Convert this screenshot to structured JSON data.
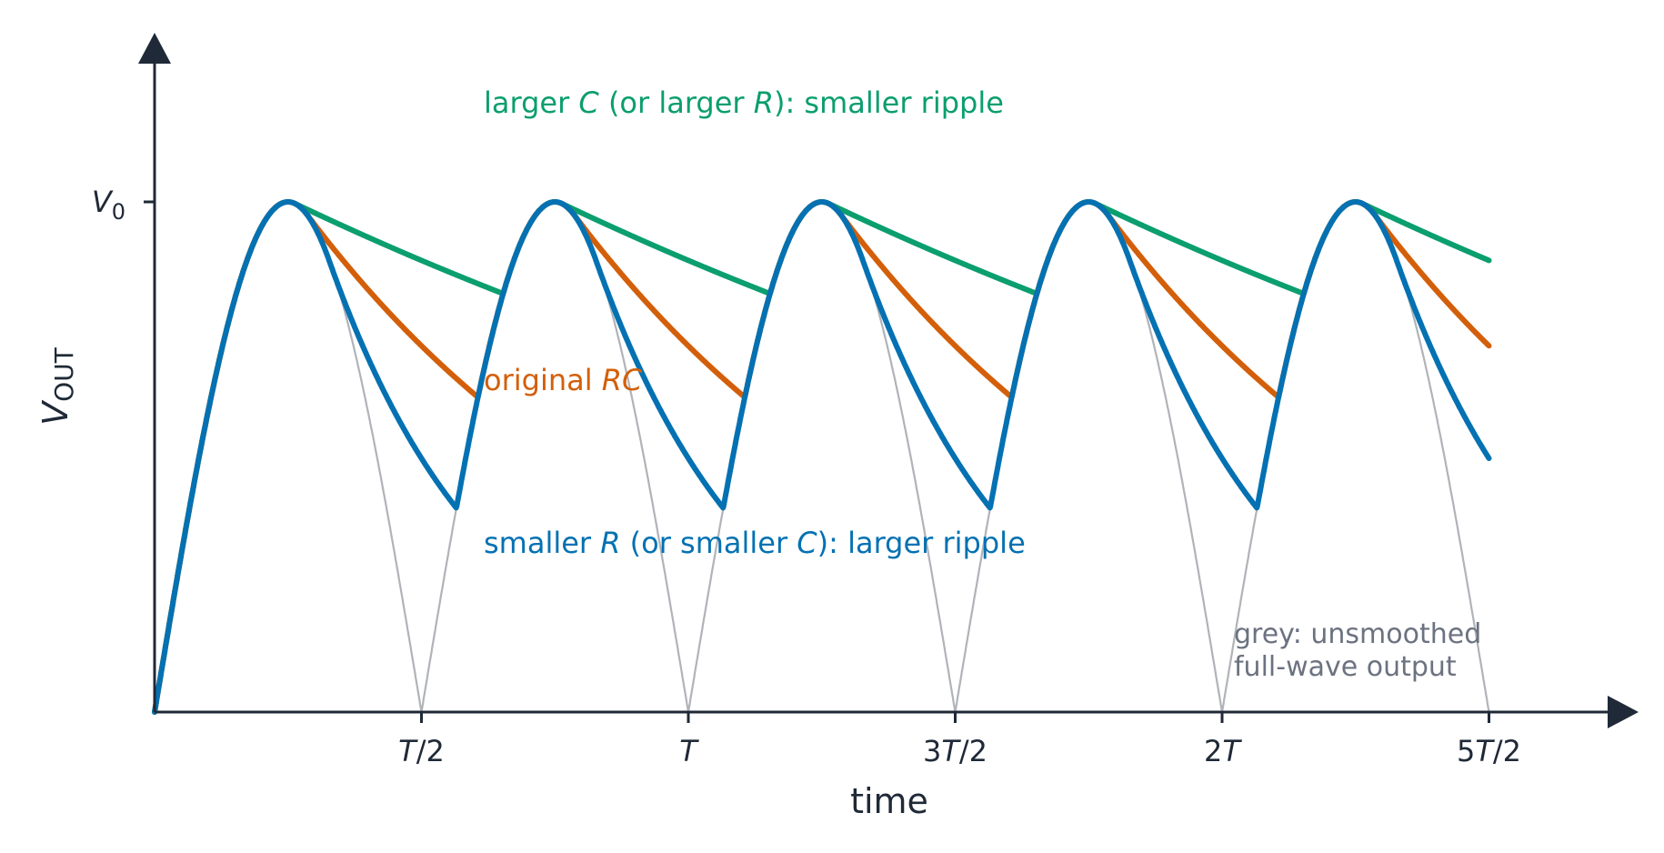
{
  "chart_data": {
    "type": "line",
    "xlabel": "time",
    "ylabel": {
      "main": "V",
      "sub": "OUT"
    },
    "x_unit": "T",
    "xlim": [
      0,
      2.5
    ],
    "ylim": [
      0,
      1
    ],
    "x_ticks": [
      {
        "value": 0.5,
        "parts": [
          {
            "t": "T",
            "it": true
          },
          {
            "t": "/2",
            "it": false
          }
        ]
      },
      {
        "value": 1.0,
        "parts": [
          {
            "t": "T",
            "it": true
          }
        ]
      },
      {
        "value": 1.5,
        "parts": [
          {
            "t": "3",
            "it": false
          },
          {
            "t": "T",
            "it": true
          },
          {
            "t": "/2",
            "it": false
          }
        ]
      },
      {
        "value": 2.0,
        "parts": [
          {
            "t": "2",
            "it": false
          },
          {
            "t": "T",
            "it": true
          }
        ]
      },
      {
        "value": 2.5,
        "parts": [
          {
            "t": "5",
            "it": false
          },
          {
            "t": "T",
            "it": true
          },
          {
            "t": "/2",
            "it": false
          }
        ]
      }
    ],
    "y_ticks": [
      {
        "value": 1.0,
        "main": "V",
        "sub": "0"
      }
    ],
    "grid": false,
    "waveform": "full-wave rectified sine, period T, peak V0 at T/4 + k*T/2",
    "series": [
      {
        "key": "unsmoothed",
        "color": "#b0b3b8",
        "decay_tau": null
      },
      {
        "key": "larger_c",
        "color": "#0b9e6e",
        "decay_tau": 2.0
      },
      {
        "key": "original",
        "color": "#d35f0a",
        "decay_tau": 0.7
      },
      {
        "key": "smaller_r",
        "color": "#0471b2",
        "decay_tau": 0.3
      }
    ],
    "annotations": [
      {
        "key": "larger_c",
        "color": "#0b9e6e",
        "parts": [
          {
            "t": "larger ",
            "it": false
          },
          {
            "t": "C",
            "it": true
          },
          {
            "t": " (or larger ",
            "it": false
          },
          {
            "t": "R",
            "it": true
          },
          {
            "t": "): smaller ripple",
            "it": false
          }
        ]
      },
      {
        "key": "original",
        "color": "#d35f0a",
        "parts": [
          {
            "t": "original ",
            "it": false
          },
          {
            "t": "RC",
            "it": true
          }
        ]
      },
      {
        "key": "smaller_r",
        "color": "#0471b2",
        "parts": [
          {
            "t": "smaller ",
            "it": false
          },
          {
            "t": "R",
            "it": true
          },
          {
            "t": " (or smaller ",
            "it": false
          },
          {
            "t": "C",
            "it": true
          },
          {
            "t": "): larger ripple",
            "it": false
          }
        ]
      }
    ],
    "note": [
      "grey: unsmoothed",
      "full-wave output"
    ],
    "colors": {
      "axis": "#1f2937",
      "note": "#6b7280"
    }
  }
}
